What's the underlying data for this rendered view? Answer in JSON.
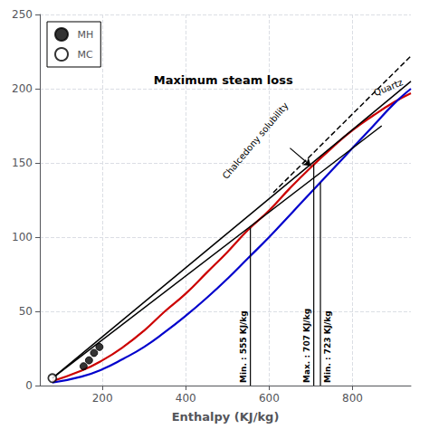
{
  "chart_data": {
    "type": "line",
    "xlabel": "Enthalpy (KJ/kg)",
    "xlim": [
      50,
      940
    ],
    "ylim": [
      0,
      250
    ],
    "xticks": [
      200,
      400,
      600,
      800
    ],
    "yticks": [
      0,
      50,
      100,
      150,
      200,
      250
    ],
    "grid": true,
    "legend": "upper left",
    "series": [
      {
        "type": "spline",
        "color": "#cc0000",
        "line_style": "solid",
        "x": [
          80,
          150,
          200,
          250,
          300,
          350,
          400,
          450,
          500,
          550,
          600,
          650,
          700,
          750,
          800,
          850,
          900,
          940
        ],
        "values": [
          3,
          10,
          17,
          26,
          37,
          50,
          62,
          76,
          90,
          105,
          118,
          133,
          147,
          160,
          172,
          182,
          191,
          197
        ]
      },
      {
        "type": "spline",
        "color": "#0000cc",
        "line_style": "solid",
        "x": [
          80,
          150,
          200,
          250,
          300,
          350,
          400,
          450,
          500,
          550,
          600,
          650,
          700,
          750,
          800,
          850,
          900,
          940
        ],
        "values": [
          2,
          6,
          11,
          18,
          26,
          36,
          47,
          59,
          72,
          86,
          100,
          115,
          130,
          145,
          160,
          175,
          190,
          200
        ]
      },
      {
        "type": "line",
        "color": "#000000",
        "line_style": "solid",
        "x": [
          80,
          870
        ],
        "values": [
          5,
          175
        ]
      },
      {
        "type": "line",
        "color": "#000000",
        "line_style": "solid",
        "x": [
          80,
          940
        ],
        "values": [
          5,
          205
        ]
      },
      {
        "type": "line",
        "color": "#000000",
        "line_style": "dashed",
        "x": [
          610,
          940
        ],
        "values": [
          130,
          222
        ]
      },
      {
        "name": "MH",
        "type": "scatter",
        "color": "#000000",
        "marker": "filled",
        "x": [
          155,
          168,
          180,
          193
        ],
        "values": [
          13,
          17,
          22,
          26
        ]
      },
      {
        "name": "MC",
        "type": "scatter",
        "color": "#000000",
        "marker": "hollow",
        "x": [
          80
        ],
        "values": [
          5
        ]
      }
    ],
    "vlines": [
      {
        "x": 555,
        "y": 106.3,
        "label": "Min. : 555 KJ/kg"
      },
      {
        "x": 707,
        "y": 148.9,
        "label": "Max. : 707 KJ/kg"
      },
      {
        "x": 723,
        "y": 136.9,
        "label": "Min. : 723 KJ/kg"
      }
    ],
    "annotations": [
      {
        "text": "Maximum steam loss",
        "x": 490,
        "y": 210
      },
      {
        "text": "Chalcedony solubility",
        "x": 575,
        "y": 163
      },
      {
        "text": "Quartz",
        "x": 890,
        "y": 198
      }
    ],
    "arrows": [
      {
        "x": [
          650,
          700
        ],
        "y": [
          160,
          148
        ]
      }
    ]
  }
}
